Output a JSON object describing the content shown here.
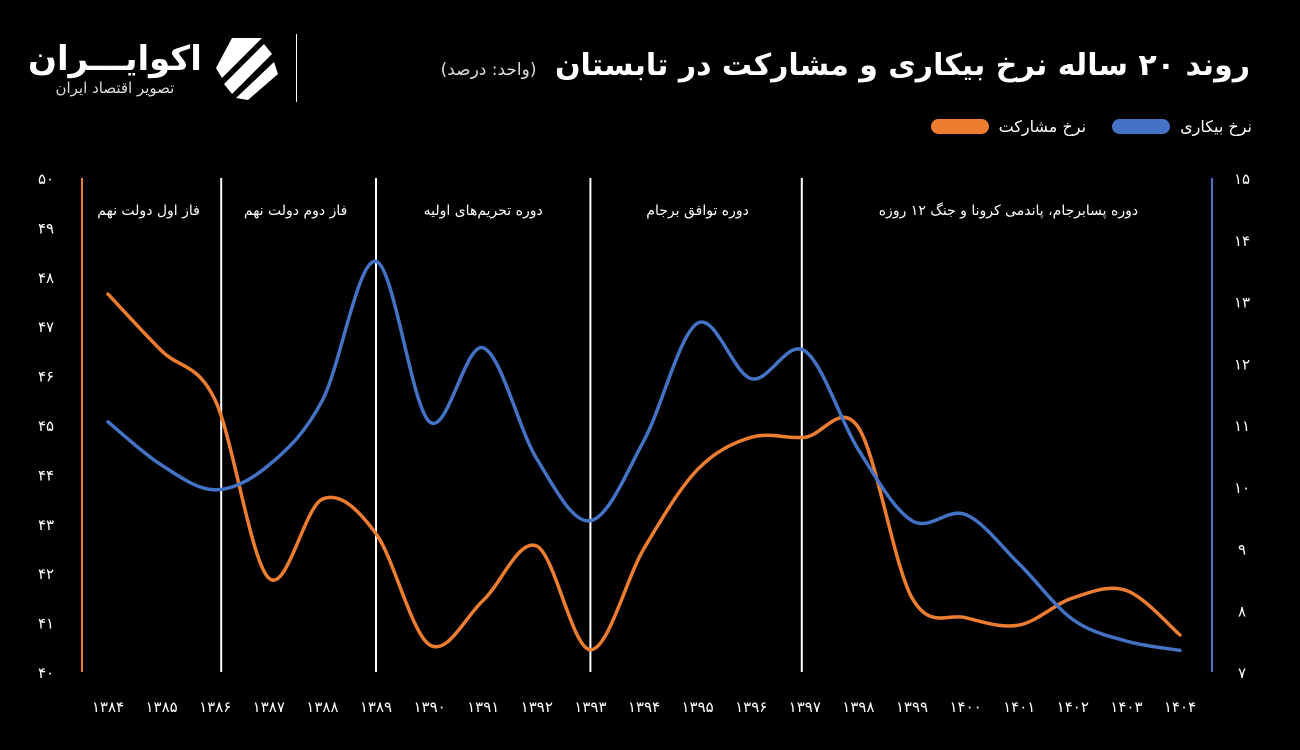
{
  "header": {
    "title": "روند ۲۰ ساله نرخ بیکاری و مشارکت در تابستان",
    "unit": "(واحد: درصد)"
  },
  "logo": {
    "name": "اکوایـــران",
    "subtitle": "تصویر اقتصاد ایران"
  },
  "chart_data": {
    "type": "line",
    "title": "روند ۲۰ ساله نرخ بیکاری و مشارکت در تابستان",
    "subtitle": "(واحد: درصد)",
    "x": [
      "۱۳۸۴",
      "۱۳۸۵",
      "۱۳۸۶",
      "۱۳۸۷",
      "۱۳۸۸",
      "۱۳۸۹",
      "۱۳۹۰",
      "۱۳۹۱",
      "۱۳۹۲",
      "۱۳۹۳",
      "۱۳۹۴",
      "۱۳۹۵",
      "۱۳۹۶",
      "۱۳۹۷",
      "۱۳۹۸",
      "۱۳۹۹",
      "۱۴۰۰",
      "۱۴۰۱",
      "۱۴۰۲",
      "۱۴۰۳",
      "۱۴۰۴"
    ],
    "legend_position": "top-right",
    "grid": false,
    "left_axis": {
      "ylim": [
        40,
        50
      ],
      "ticks": [
        "۴۰",
        "۴۱",
        "۴۲",
        "۴۳",
        "۴۴",
        "۴۵",
        "۴۶",
        "۴۷",
        "۴۸",
        "۴۹",
        "۵۰"
      ],
      "color": "#ed7d31"
    },
    "right_axis": {
      "ylim": [
        7,
        15
      ],
      "ticks": [
        "۷",
        "۸",
        "۹",
        "۱۰",
        "۱۱",
        "۱۲",
        "۱۳",
        "۱۴",
        "۱۵"
      ],
      "color": "#4472c4"
    },
    "series": [
      {
        "name": "نرخ مشارکت",
        "axis": "left",
        "color": "#ed7d31",
        "values": [
          47.65,
          46.5,
          45.5,
          41.9,
          43.5,
          42.8,
          40.55,
          41.45,
          42.55,
          40.45,
          42.5,
          44.1,
          44.75,
          44.75,
          44.95,
          41.5,
          41.1,
          40.95,
          41.5,
          41.65,
          40.75
        ]
      },
      {
        "name": "نرخ بیکاری",
        "axis": "right",
        "color": "#4472c4",
        "values": [
          11.05,
          10.35,
          9.95,
          10.35,
          11.4,
          13.65,
          11.05,
          12.25,
          10.45,
          9.45,
          10.75,
          12.65,
          11.75,
          12.2,
          10.6,
          9.45,
          9.55,
          8.75,
          7.85,
          7.5,
          7.35
        ]
      }
    ],
    "periods": [
      {
        "label": "فاز اول دولت نهم",
        "from": "۱۳۸۴",
        "to": "۱۳۸۶"
      },
      {
        "label": "فاز دوم دولت نهم",
        "from": "۱۳۸۶",
        "to": "۱۳۸۹"
      },
      {
        "label": "دوره تحریم‌های اولیه",
        "from": "۱۳۸۹",
        "to": "۱۳۹۳"
      },
      {
        "label": "دوره توافق برجام",
        "from": "۱۳۹۳",
        "to": "۱۳۹۷"
      },
      {
        "label": "دوره پسابرجام، پاندمی کرونا و جنگ ۱۲ روزه",
        "from": "۱۳۹۷",
        "to": "۱۴۰۴"
      }
    ],
    "period_boundaries": [
      2,
      5,
      9,
      13
    ]
  }
}
